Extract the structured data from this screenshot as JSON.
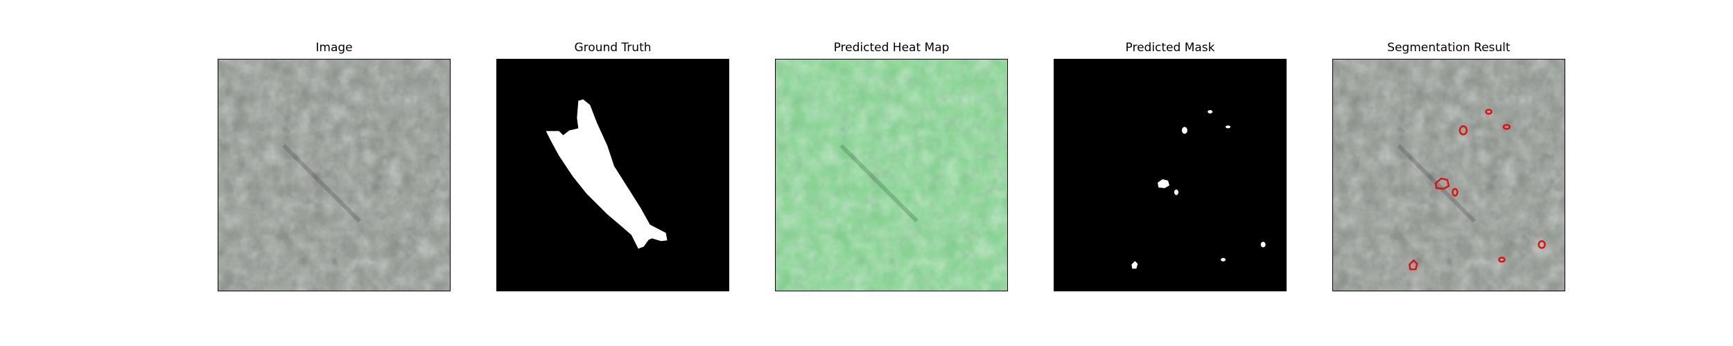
{
  "figure": {
    "panels": [
      {
        "title": "Image"
      },
      {
        "title": "Ground Truth"
      },
      {
        "title": "Predicted Heat Map"
      },
      {
        "title": "Predicted Mask"
      },
      {
        "title": "Segmentation Result"
      }
    ]
  },
  "colors": {
    "texture_base": "#8e958e",
    "texture_dark": "#3a3c3a",
    "heatmap_tint": "#7fd18a",
    "mask_background": "#000000",
    "mask_foreground": "#ffffff",
    "contour": "#e01010"
  }
}
